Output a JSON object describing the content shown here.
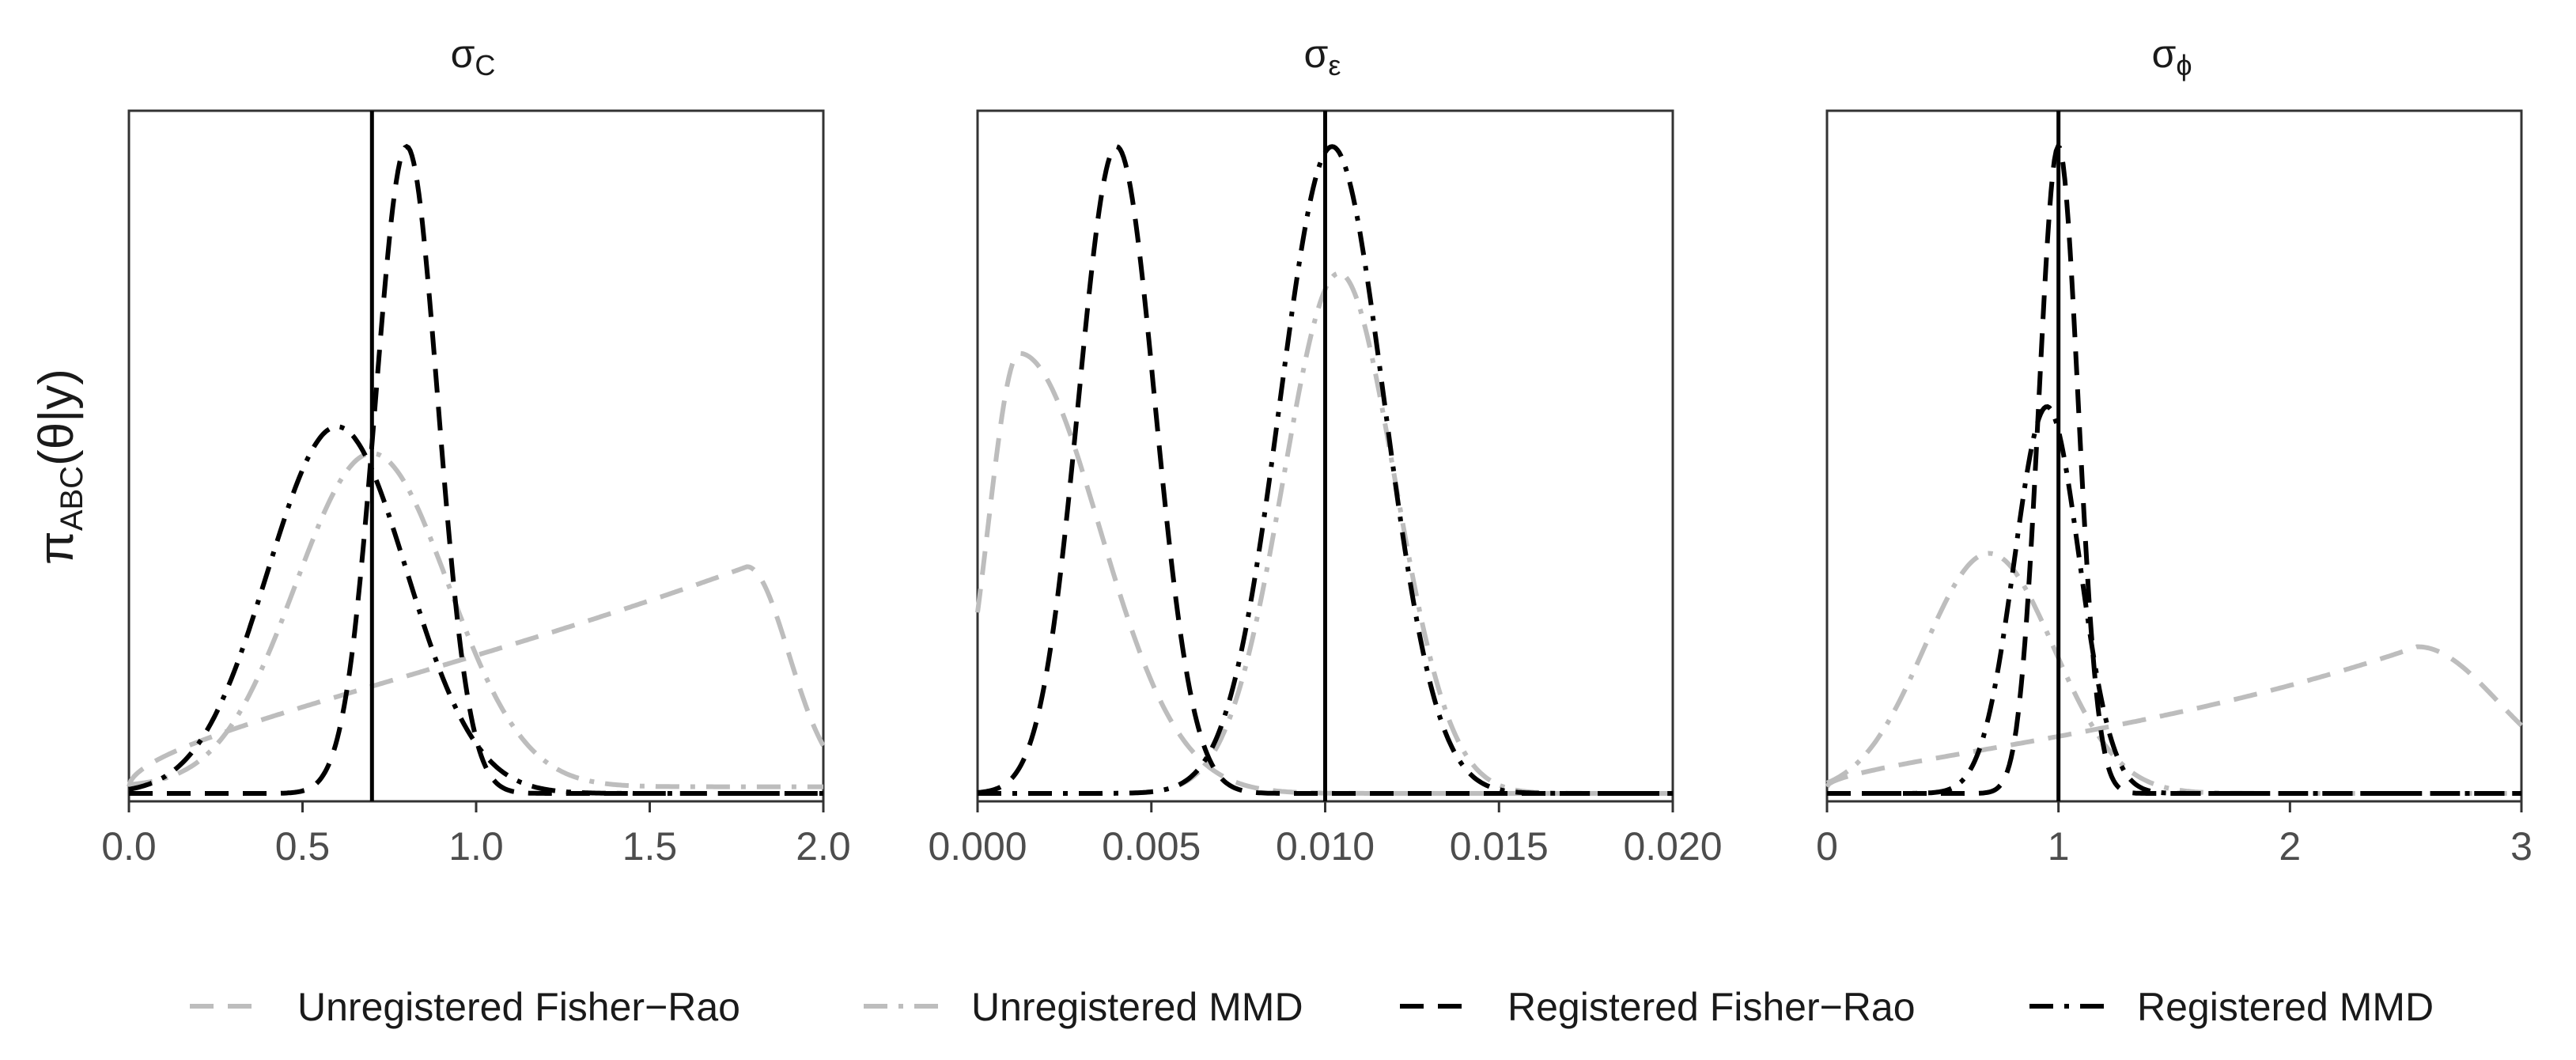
{
  "ylabel": {
    "main": "π",
    "sub": "ABC",
    "rest": "(θ|y)"
  },
  "legend": [
    {
      "label": "Unregistered Fisher−Rao",
      "color": "#bdbdbd",
      "dash": "dash"
    },
    {
      "label": "Unregistered MMD",
      "color": "#bdbdbd",
      "dash": "dashdot"
    },
    {
      "label": "Registered Fisher−Rao",
      "color": "#000000",
      "dash": "dash"
    },
    {
      "label": "Registered MMD",
      "color": "#000000",
      "dash": "dashdot"
    }
  ],
  "chart_data": [
    {
      "type": "line",
      "title_main": "σ",
      "title_sub": "C",
      "xlim": [
        0,
        2.0
      ],
      "ylim": [
        0,
        1.0
      ],
      "xticks": [
        "0.0",
        "0.5",
        "1.0",
        "1.5",
        "2.0"
      ],
      "xtick_values": [
        0,
        0.5,
        1.0,
        1.5,
        2.0
      ],
      "true_value": 0.7,
      "series": [
        {
          "name": "Unregistered Fisher−Rao",
          "kind": "skewlate",
          "mode": 1.78,
          "peak": 0.34,
          "base": 0.01,
          "r": 0.14,
          "fall": 0.12
        },
        {
          "name": "Unregistered MMD",
          "kind": "gauss",
          "mu": 0.7,
          "sigma": 0.22,
          "peak": 0.5,
          "base": 0.01
        },
        {
          "name": "Registered Fisher−Rao",
          "kind": "gauss",
          "mu": 0.8,
          "sigma": 0.09,
          "peak": 0.97,
          "base": 0.0
        },
        {
          "name": "Registered MMD",
          "kind": "gauss",
          "mu": 0.6,
          "sigma": 0.2,
          "peak": 0.55,
          "base": 0.0
        }
      ]
    },
    {
      "type": "line",
      "title_main": "σ",
      "title_sub": "ε",
      "xlim": [
        0,
        0.02
      ],
      "ylim": [
        0,
        1.0
      ],
      "xticks": [
        "0.000",
        "0.005",
        "0.010",
        "0.015",
        "0.020"
      ],
      "xtick_values": [
        0,
        0.005,
        0.01,
        0.015,
        0.02
      ],
      "true_value": 0.01,
      "series": [
        {
          "name": "Unregistered Fisher−Rao",
          "kind": "halfgauss",
          "mu": 0.0012,
          "sl": 0.0009,
          "sr": 0.0023,
          "peak": 0.66,
          "base": 0.0
        },
        {
          "name": "Unregistered MMD",
          "kind": "gauss",
          "mu": 0.0104,
          "sigma": 0.0016,
          "peak": 0.78,
          "base": 0.0
        },
        {
          "name": "Registered Fisher−Rao",
          "kind": "gauss",
          "mu": 0.004,
          "sigma": 0.0011,
          "peak": 0.97,
          "base": 0.0
        },
        {
          "name": "Registered MMD",
          "kind": "gauss",
          "mu": 0.0102,
          "sigma": 0.0015,
          "peak": 0.97,
          "base": 0.0
        }
      ]
    },
    {
      "type": "line",
      "title_main": "σ",
      "title_sub": "ϕ",
      "xlim": [
        0,
        3
      ],
      "ylim": [
        0,
        1.0
      ],
      "xticks": [
        "0",
        "1",
        "2",
        "3"
      ],
      "xtick_values": [
        0,
        1,
        2,
        3
      ],
      "true_value": 1.0,
      "series": [
        {
          "name": "Unregistered Fisher−Rao",
          "kind": "skewlate",
          "mode": 2.55,
          "peak": 0.22,
          "base": 0.01,
          "r": 0.24,
          "fall": 0.35
        },
        {
          "name": "Unregistered MMD",
          "kind": "gauss",
          "mu": 0.7,
          "sigma": 0.28,
          "peak": 0.36,
          "base": 0.0
        },
        {
          "name": "Registered Fisher−Rao",
          "kind": "gauss",
          "mu": 1.0,
          "sigma": 0.085,
          "peak": 0.97,
          "base": 0.0
        },
        {
          "name": "Registered MMD",
          "kind": "gauss",
          "mu": 0.95,
          "sigma": 0.14,
          "peak": 0.58,
          "base": 0.0
        }
      ]
    }
  ]
}
